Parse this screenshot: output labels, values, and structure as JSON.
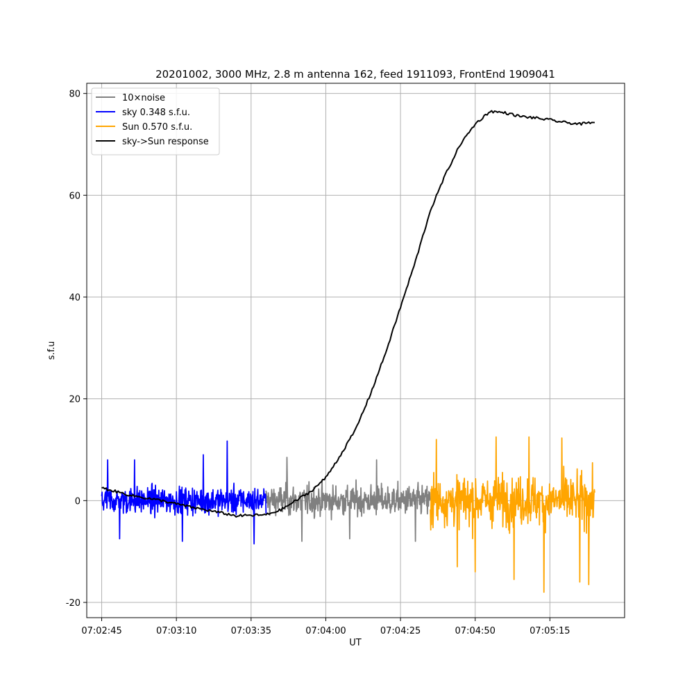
{
  "chart_data": {
    "type": "line",
    "title": "20201002, 3000 MHz, 2.8 m antenna 162, feed 1911093, FrontEnd 1909041",
    "xlabel": "UT",
    "ylabel": "s.f.u",
    "xlim": [
      "07:02:40",
      "07:05:40"
    ],
    "ylim": [
      -23,
      82
    ],
    "x_ticks": [
      "07:02:45",
      "07:03:10",
      "07:03:35",
      "07:04:00",
      "07:04:25",
      "07:04:50",
      "07:05:15"
    ],
    "y_ticks": [
      -20,
      0,
      20,
      40,
      60,
      80
    ],
    "grid": true,
    "legend": "top-left",
    "series": [
      {
        "name": "10×noise",
        "color": "#808080",
        "segment": [
          "07:03:40",
          "07:04:35"
        ],
        "amplitude": 5,
        "spikes": [
          [
            "07:03:47",
            8.5
          ],
          [
            "07:03:52",
            -8
          ],
          [
            "07:04:08",
            -7.5
          ],
          [
            "07:04:17",
            8
          ],
          [
            "07:04:30",
            -8
          ]
        ]
      },
      {
        "name": "sky 0.348 s.f.u.",
        "color": "#0000ff",
        "segment": [
          "07:02:45",
          "07:03:40"
        ],
        "amplitude": 4.5,
        "spikes": [
          [
            "07:02:47",
            8
          ],
          [
            "07:02:51",
            -7.5
          ],
          [
            "07:02:56",
            8
          ],
          [
            "07:03:12",
            -8
          ],
          [
            "07:03:19",
            9
          ],
          [
            "07:03:27",
            11.7
          ],
          [
            "07:03:36",
            -8.5
          ]
        ]
      },
      {
        "name": "Sun 0.570 s.f.u.",
        "color": "#ffa500",
        "segment": [
          "07:04:35",
          "07:05:30"
        ],
        "amplitude": 8,
        "spikes": [
          [
            "07:04:37",
            12
          ],
          [
            "07:04:44",
            -13
          ],
          [
            "07:04:50",
            -14
          ],
          [
            "07:04:57",
            12.5
          ],
          [
            "07:05:03",
            -15.5
          ],
          [
            "07:05:08",
            12.5
          ],
          [
            "07:05:13",
            -18
          ],
          [
            "07:05:19",
            12.3
          ],
          [
            "07:05:25",
            -16
          ],
          [
            "07:05:28",
            -16.5
          ]
        ]
      },
      {
        "name": "sky->Sun response",
        "color": "#000000",
        "points": [
          [
            "07:02:45",
            2.5
          ],
          [
            "07:02:55",
            1.0
          ],
          [
            "07:03:05",
            0.0
          ],
          [
            "07:03:15",
            -1.3
          ],
          [
            "07:03:25",
            -2.4
          ],
          [
            "07:03:30",
            -3.0
          ],
          [
            "07:03:40",
            -2.8
          ],
          [
            "07:03:45",
            -1.8
          ],
          [
            "07:03:50",
            0.0
          ],
          [
            "07:03:55",
            1.8
          ],
          [
            "07:04:00",
            4.5
          ],
          [
            "07:04:05",
            9.0
          ],
          [
            "07:04:10",
            14.0
          ],
          [
            "07:04:15",
            21.0
          ],
          [
            "07:04:20",
            29.0
          ],
          [
            "07:04:25",
            38.0
          ],
          [
            "07:04:30",
            47.0
          ],
          [
            "07:04:35",
            57.0
          ],
          [
            "07:04:40",
            64.0
          ],
          [
            "07:04:45",
            70.0
          ],
          [
            "07:04:50",
            74.0
          ],
          [
            "07:04:55",
            76.5
          ],
          [
            "07:05:00",
            76.2
          ],
          [
            "07:05:05",
            75.5
          ],
          [
            "07:05:10",
            75.2
          ],
          [
            "07:05:15",
            74.8
          ],
          [
            "07:05:20",
            74.3
          ],
          [
            "07:05:25",
            74.0
          ],
          [
            "07:05:30",
            74.3
          ]
        ]
      }
    ]
  }
}
